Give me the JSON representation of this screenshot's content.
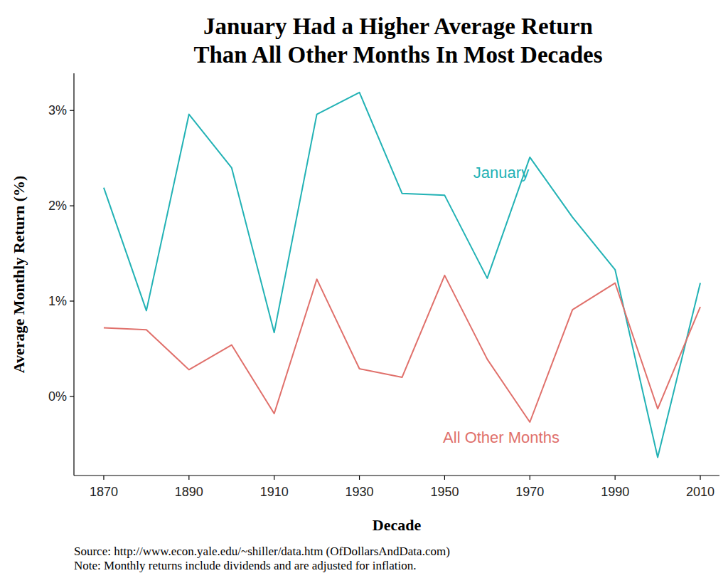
{
  "chart_data": {
    "type": "line",
    "title": "January Had a Higher Average Return\nThan All Other Months In Most Decades",
    "x_label": "Decade",
    "y_label": "Average Monthly Return (%)",
    "source": "Source: http://www.econ.yale.edu/~shiller/data.htm (OfDollarsAndData.com)",
    "note": "Note: Monthly returns include dividends and are adjusted for inflation.",
    "x": [
      1870,
      1880,
      1890,
      1900,
      1910,
      1920,
      1930,
      1940,
      1950,
      1960,
      1970,
      1980,
      1990,
      2000,
      2010
    ],
    "xlim": [
      1863,
      2014.5
    ],
    "xticks": [
      1870,
      1890,
      1910,
      1930,
      1950,
      1970,
      1990,
      2010
    ],
    "ylim": [
      -0.83,
      3.39
    ],
    "yticks": [
      {
        "value": 0,
        "label": "0%"
      },
      {
        "value": 1,
        "label": "1%"
      },
      {
        "value": 2,
        "label": "2%"
      },
      {
        "value": 3,
        "label": "3%"
      }
    ],
    "grid": false,
    "series": [
      {
        "name": "January",
        "color": "#22b2b5",
        "values": [
          2.19,
          0.9,
          2.96,
          2.4,
          0.67,
          2.96,
          3.19,
          2.13,
          2.11,
          1.24,
          2.51,
          1.88,
          1.33,
          -0.64,
          1.19
        ]
      },
      {
        "name": "All Other Months",
        "color": "#e0706b",
        "values": [
          0.72,
          0.7,
          0.28,
          0.54,
          -0.18,
          1.23,
          0.29,
          0.2,
          1.27,
          0.39,
          -0.27,
          0.91,
          1.19,
          -0.13,
          0.94
        ]
      }
    ]
  }
}
